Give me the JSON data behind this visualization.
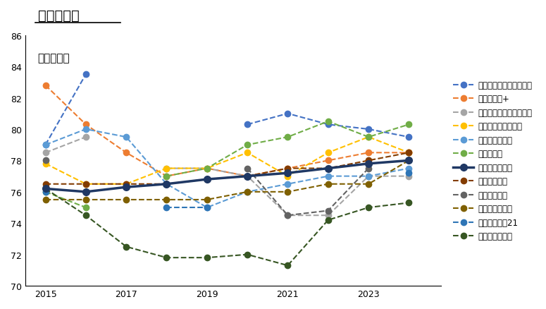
{
  "title": "マンション",
  "subtitle": "顧客満足度",
  "years": [
    2015,
    2016,
    2017,
    2018,
    2019,
    2020,
    2021,
    2022,
    2023,
    2024
  ],
  "series": [
    {
      "name": "住友林業ホームサービス",
      "color": "#4472C4",
      "linewidth": 1.5,
      "linestyle": "--",
      "marker": "o",
      "markersize": 6,
      "zorder": 3,
      "data": [
        79.0,
        83.5,
        null,
        null,
        null,
        80.3,
        81.0,
        80.3,
        80.0,
        79.5
      ]
    },
    {
      "name": "野村の仲介+",
      "color": "#ED7D31",
      "linewidth": 1.5,
      "linestyle": "--",
      "marker": "o",
      "markersize": 6,
      "zorder": 3,
      "data": [
        82.8,
        80.3,
        78.5,
        77.0,
        77.5,
        77.0,
        77.5,
        78.0,
        78.5,
        78.5
      ]
    },
    {
      "name": "三井住友トラスト不動産",
      "color": "#A5A5A5",
      "linewidth": 1.5,
      "linestyle": "--",
      "marker": "o",
      "markersize": 6,
      "zorder": 3,
      "data": [
        78.5,
        79.5,
        null,
        77.5,
        77.5,
        77.0,
        74.5,
        74.5,
        77.0,
        77.0
      ]
    },
    {
      "name": "大成有楽不動産販売",
      "color": "#FFC000",
      "linewidth": 1.5,
      "linestyle": "--",
      "marker": "o",
      "markersize": 6,
      "zorder": 3,
      "data": [
        77.8,
        76.5,
        76.5,
        77.5,
        77.5,
        78.5,
        77.0,
        78.5,
        79.5,
        78.5
      ]
    },
    {
      "name": "大京穴吹不動産",
      "color": "#5B9BD5",
      "linewidth": 1.5,
      "linestyle": "--",
      "marker": "o",
      "markersize": 6,
      "zorder": 3,
      "data": [
        79.0,
        80.0,
        79.5,
        76.5,
        75.0,
        76.0,
        76.5,
        77.0,
        77.0,
        77.5
      ]
    },
    {
      "name": "近鉄の仲介",
      "color": "#70AD47",
      "linewidth": 1.5,
      "linestyle": "--",
      "marker": "o",
      "markersize": 6,
      "zorder": 3,
      "data": [
        76.0,
        75.0,
        null,
        77.0,
        77.5,
        79.0,
        79.5,
        80.5,
        79.5,
        80.3
      ]
    },
    {
      "name": "三井のリハウス",
      "color": "#1F3864",
      "linewidth": 2.5,
      "linestyle": "-",
      "marker": "o",
      "markersize": 7,
      "zorder": 5,
      "data": [
        76.2,
        76.0,
        76.3,
        76.5,
        76.8,
        77.0,
        77.2,
        77.5,
        77.8,
        78.0
      ]
    },
    {
      "name": "東急リバブル",
      "color": "#833C00",
      "linewidth": 1.5,
      "linestyle": "--",
      "marker": "o",
      "markersize": 6,
      "zorder": 3,
      "data": [
        76.5,
        76.5,
        76.5,
        76.5,
        76.8,
        77.0,
        77.5,
        77.5,
        78.0,
        78.5
      ]
    },
    {
      "name": "長谷工の仲介",
      "color": "#636363",
      "linewidth": 1.5,
      "linestyle": "--",
      "marker": "o",
      "markersize": 6,
      "zorder": 3,
      "data": [
        78.0,
        null,
        null,
        null,
        null,
        77.5,
        74.5,
        74.8,
        77.5,
        null
      ]
    },
    {
      "name": "住友不動産販売",
      "color": "#7F6000",
      "linewidth": 1.5,
      "linestyle": "--",
      "marker": "o",
      "markersize": 6,
      "zorder": 3,
      "data": [
        75.5,
        75.5,
        75.5,
        75.5,
        75.5,
        76.0,
        76.0,
        76.5,
        76.5,
        78.0
      ]
    },
    {
      "name": "センチュリー21",
      "color": "#2E75B6",
      "linewidth": 1.5,
      "linestyle": "--",
      "marker": "o",
      "markersize": 6,
      "zorder": 3,
      "data": [
        76.0,
        null,
        null,
        75.0,
        75.0,
        null,
        null,
        null,
        null,
        77.2
      ]
    },
    {
      "name": "福屋不動産販売",
      "color": "#375623",
      "linewidth": 1.5,
      "linestyle": "--",
      "marker": "o",
      "markersize": 6,
      "zorder": 3,
      "data": [
        76.2,
        74.5,
        72.5,
        71.8,
        71.8,
        72.0,
        71.3,
        74.2,
        75.0,
        75.3
      ]
    }
  ],
  "xlim": [
    2014.5,
    2024.8
  ],
  "ylim": [
    70,
    86
  ],
  "yticks": [
    70,
    72,
    74,
    76,
    78,
    80,
    82,
    84,
    86
  ],
  "xticks": [
    2015,
    2017,
    2019,
    2021,
    2023
  ],
  "background_color": "#FFFFFF"
}
